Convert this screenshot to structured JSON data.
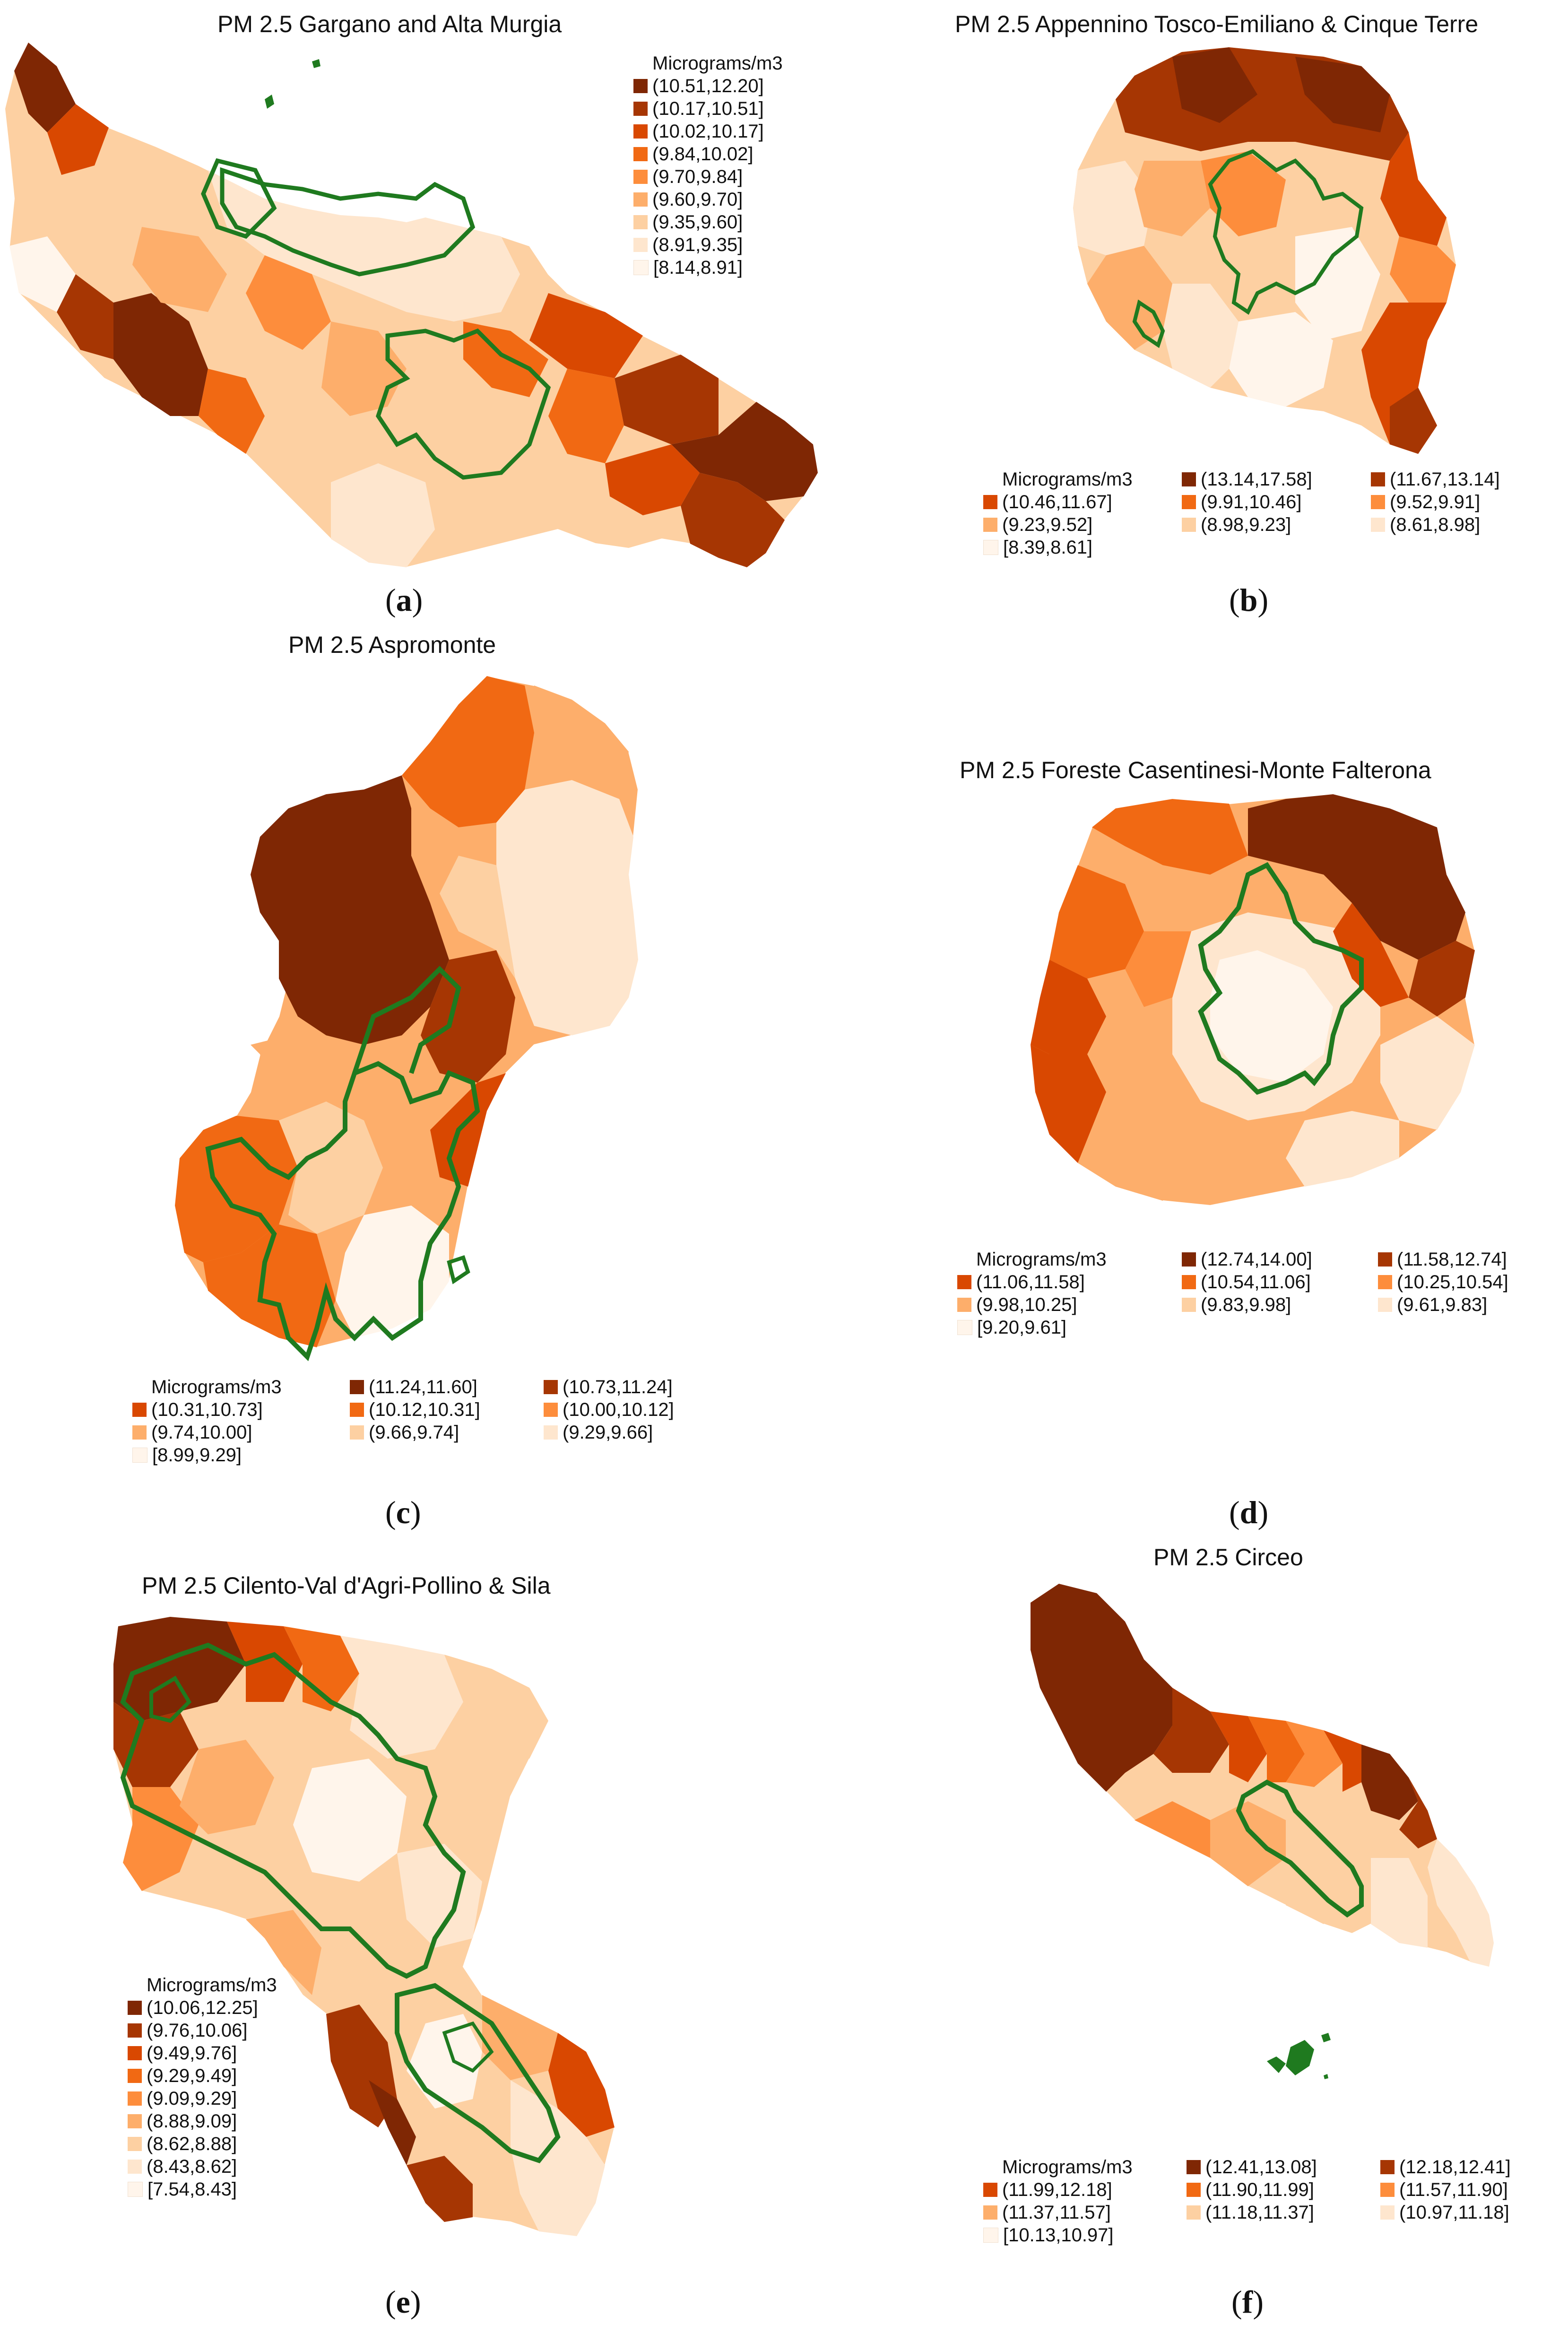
{
  "legend_title": "Micrograms/m3",
  "panels": [
    {
      "id": "a",
      "title": "PM 2.5 Gargano and Alta Murgia",
      "caption": "a",
      "classes": [
        "(10.51,12.20]",
        "(10.17,10.51]",
        "(10.02,10.17]",
        "(9.84,10.02]",
        "(9.70,9.84]",
        "(9.60,9.70]",
        "(9.35,9.60]",
        "(8.91,9.35]",
        "[8.14,8.91]"
      ],
      "colors": [
        "#7f2704",
        "#a63603",
        "#d94801",
        "#f16913",
        "#fd8d3c",
        "#fdae6b",
        "#fdd0a2",
        "#fee6ce",
        "#fff5eb"
      ]
    },
    {
      "id": "b",
      "title": "PM 2.5 Appennino Tosco-Emiliano & Cinque Terre",
      "caption": "b",
      "classes": [
        "(13.14,17.58]",
        "(11.67,13.14]",
        "(10.46,11.67]",
        "(9.91,10.46]",
        "(9.52,9.91]",
        "(9.23,9.52]",
        "(8.98,9.23]",
        "(8.61,8.98]",
        "[8.39,8.61]"
      ],
      "colors": [
        "#7f2704",
        "#a63603",
        "#d94801",
        "#f16913",
        "#fd8d3c",
        "#fdae6b",
        "#fdd0a2",
        "#fee6ce",
        "#fff5eb"
      ]
    },
    {
      "id": "c",
      "title": "PM 2.5 Aspromonte",
      "caption": "c",
      "classes": [
        "(11.24,11.60]",
        "(10.73,11.24]",
        "(10.31,10.73]",
        "(10.12,10.31]",
        "(10.00,10.12]",
        "(9.74,10.00]",
        "(9.66,9.74]",
        "(9.29,9.66]",
        "[8.99,9.29]"
      ],
      "colors": [
        "#7f2704",
        "#a63603",
        "#d94801",
        "#f16913",
        "#fd8d3c",
        "#fdae6b",
        "#fdd0a2",
        "#fee6ce",
        "#fff5eb"
      ]
    },
    {
      "id": "d",
      "title": "PM 2.5 Foreste Casentinesi-Monte Falterona",
      "caption": "d",
      "classes": [
        "(12.74,14.00]",
        "(11.58,12.74]",
        "(11.06,11.58]",
        "(10.54,11.06]",
        "(10.25,10.54]",
        "(9.98,10.25]",
        "(9.83,9.98]",
        "(9.61,9.83]",
        "[9.20,9.61]"
      ],
      "colors": [
        "#7f2704",
        "#a63603",
        "#d94801",
        "#f16913",
        "#fd8d3c",
        "#fdae6b",
        "#fdd0a2",
        "#fee6ce",
        "#fff5eb"
      ]
    },
    {
      "id": "e",
      "title": "PM 2.5 Cilento-Val d'Agri-Pollino & Sila",
      "caption": "e",
      "classes": [
        "(10.06,12.25]",
        "(9.76,10.06]",
        "(9.49,9.76]",
        "(9.29,9.49]",
        "(9.09,9.29]",
        "(8.88,9.09]",
        "(8.62,8.88]",
        "(8.43,8.62]",
        "[7.54,8.43]"
      ],
      "colors": [
        "#7f2704",
        "#a63603",
        "#d94801",
        "#f16913",
        "#fd8d3c",
        "#fdae6b",
        "#fdd0a2",
        "#fee6ce",
        "#fff5eb"
      ]
    },
    {
      "id": "f",
      "title": "PM 2.5 Circeo",
      "caption": "f",
      "classes": [
        "(12.41,13.08]",
        "(12.18,12.41]",
        "(11.99,12.18]",
        "(11.90,11.99]",
        "(11.57,11.90]",
        "(11.37,11.57]",
        "(11.18,11.37]",
        "(10.97,11.18]",
        "[10.13,10.97]"
      ],
      "colors": [
        "#7f2704",
        "#a63603",
        "#d94801",
        "#f16913",
        "#fd8d3c",
        "#fdae6b",
        "#fdd0a2",
        "#fee6ce",
        "#fff5eb"
      ]
    }
  ],
  "park_boundary_color": "#1f7a1f"
}
